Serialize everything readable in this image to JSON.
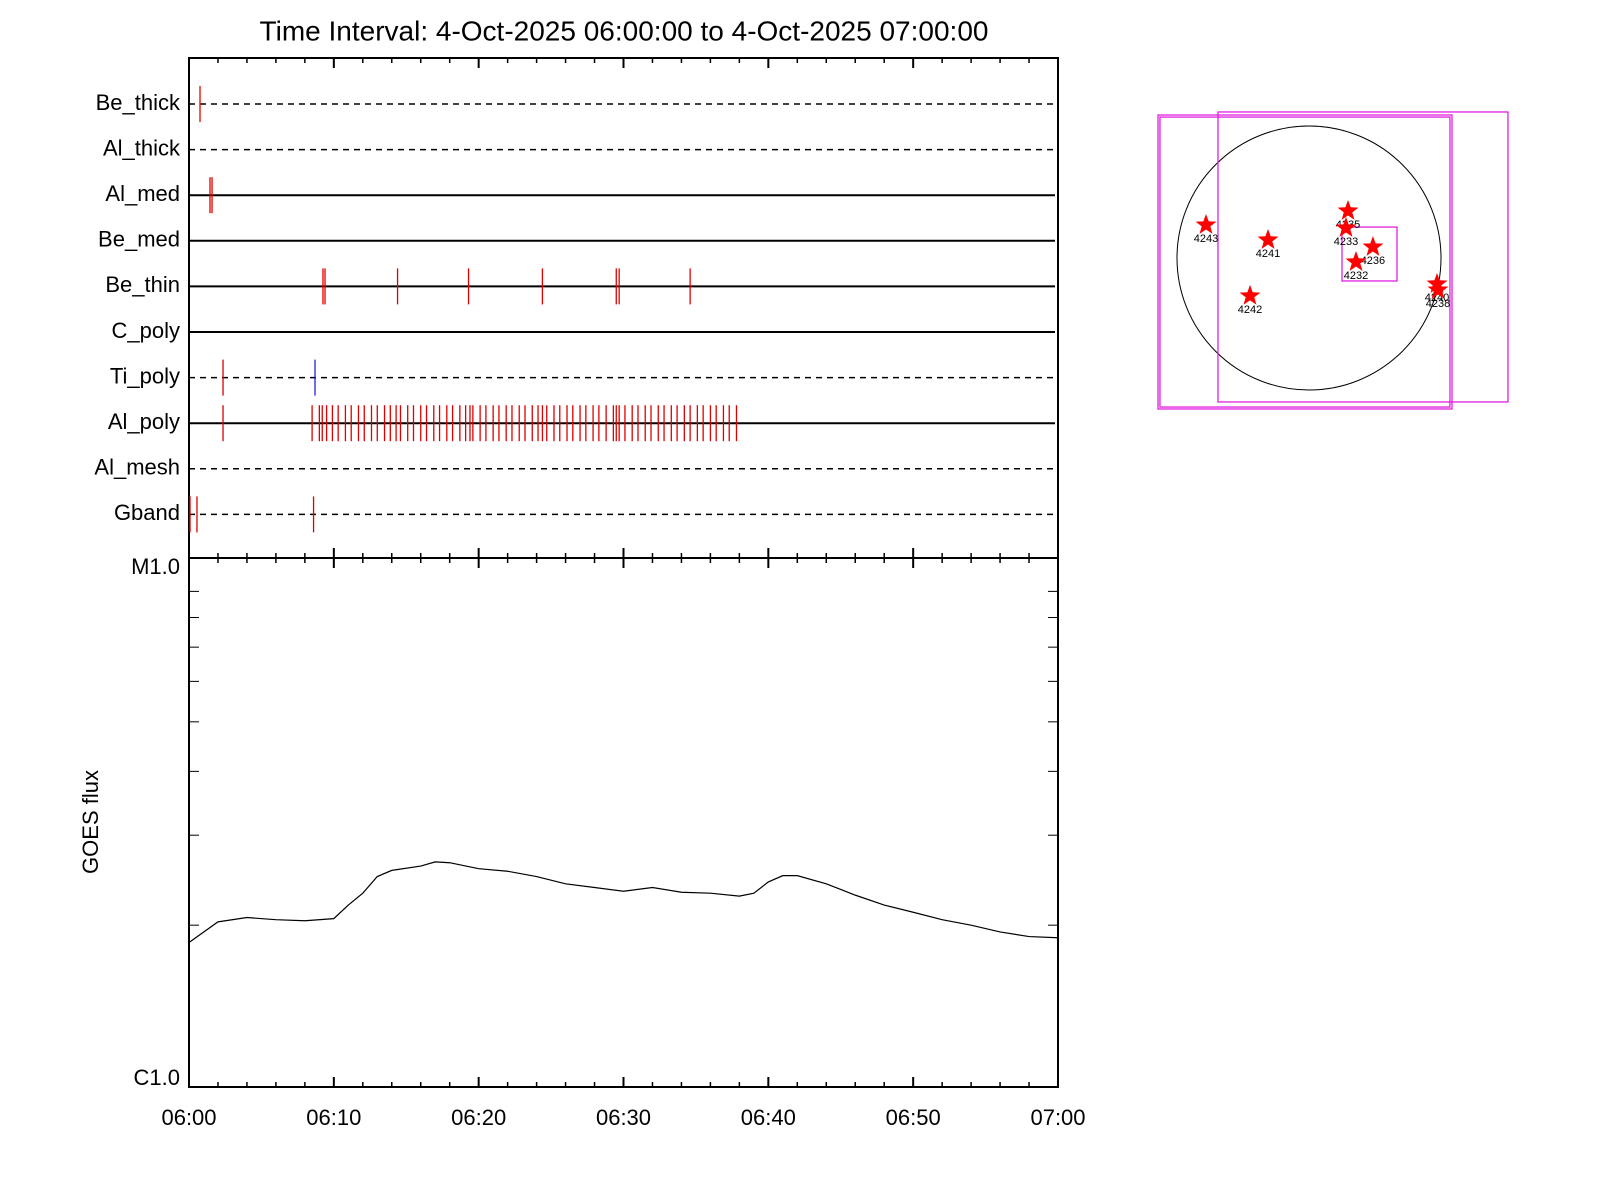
{
  "chart_data": [
    {
      "type": "timeline",
      "title": "Time Interval:  4-Oct-2025 06:00:00 to  4-Oct-2025 07:00:00",
      "xlim": [
        0,
        60
      ],
      "xticks": [
        {
          "value": 0,
          "label": "06:00"
        },
        {
          "value": 10,
          "label": "06:10"
        },
        {
          "value": 20,
          "label": "06:20"
        },
        {
          "value": 30,
          "label": "06:30"
        },
        {
          "value": 40,
          "label": "06:40"
        },
        {
          "value": 50,
          "label": "06:50"
        },
        {
          "value": 60,
          "label": "07:00"
        }
      ],
      "minor_xticks": [
        2,
        4,
        6,
        8,
        12,
        14,
        16,
        18,
        22,
        24,
        26,
        28,
        32,
        34,
        36,
        38,
        42,
        44,
        46,
        48,
        52,
        54,
        56,
        58
      ],
      "series": [
        {
          "name": "Be_thick",
          "style": "dashed",
          "color": "#e00000",
          "values": [
            0.76
          ]
        },
        {
          "name": "Al_thick",
          "style": "dashed",
          "color": "#e00000",
          "values": []
        },
        {
          "name": "Al_med",
          "style": "solid",
          "color": "#e00000",
          "values": [
            1.45,
            1.59
          ]
        },
        {
          "name": "Be_med",
          "style": "solid",
          "color": "#e00000",
          "values": []
        },
        {
          "name": "Be_thin",
          "style": "solid",
          "color": "#e00000",
          "values": [
            9.25,
            9.39,
            14.4,
            19.3,
            24.4,
            29.5,
            29.7,
            34.6
          ]
        },
        {
          "name": "C_poly",
          "style": "solid",
          "color": "#e00000",
          "values": []
        },
        {
          "name": "Ti_poly",
          "style": "dashed",
          "color": "#e00000",
          "colors": [
            "#e00000",
            "#2020e0"
          ],
          "values": [
            2.35,
            8.7
          ]
        },
        {
          "name": "Al_poly",
          "style": "solid",
          "color": "#e00000",
          "values": [
            2.35,
            8.5,
            9.0,
            9.2,
            9.5,
            9.9,
            10.3,
            10.8,
            11.2,
            11.7,
            12.1,
            12.6,
            13.0,
            13.5,
            13.9,
            14.3,
            14.6,
            15.1,
            15.5,
            16.0,
            16.4,
            16.9,
            17.3,
            17.8,
            18.2,
            18.7,
            19.1,
            19.4,
            19.6,
            20.1,
            20.5,
            21.0,
            21.4,
            21.9,
            22.3,
            22.8,
            23.2,
            23.7,
            24.1,
            24.4,
            24.7,
            25.2,
            25.6,
            26.1,
            26.5,
            27.0,
            27.4,
            27.9,
            28.3,
            28.8,
            29.3,
            29.5,
            29.7,
            30.1,
            30.6,
            31.0,
            31.5,
            31.9,
            32.4,
            32.8,
            33.3,
            33.7,
            34.2,
            34.6,
            35.1,
            35.5,
            36.0,
            36.4,
            36.9,
            37.3,
            37.8
          ]
        },
        {
          "name": "Al_mesh",
          "style": "dashed",
          "color": "#e00000",
          "values": []
        },
        {
          "name": "Gband",
          "style": "dashed",
          "color": "#e00000",
          "values": [
            0.07,
            0.55,
            8.6
          ]
        }
      ]
    },
    {
      "type": "line",
      "ylabel": "GOES flux",
      "log_y": true,
      "color": "#000000",
      "xlim": [
        0,
        60
      ],
      "xticks": [
        {
          "value": 0,
          "label": "06:00"
        },
        {
          "value": 10,
          "label": "06:10"
        },
        {
          "value": 20,
          "label": "06:20"
        },
        {
          "value": 30,
          "label": "06:30"
        },
        {
          "value": 40,
          "label": "06:40"
        },
        {
          "value": 50,
          "label": "06:50"
        },
        {
          "value": 60,
          "label": "07:00"
        }
      ],
      "minor_xticks": [
        2,
        4,
        6,
        8,
        12,
        14,
        16,
        18,
        22,
        24,
        26,
        28,
        32,
        34,
        36,
        38,
        42,
        44,
        46,
        48,
        52,
        54,
        56,
        58
      ],
      "ylim": [
        1e-06,
        1e-05
      ],
      "yticks": [
        {
          "value": 1e-06,
          "label": "C1.0"
        },
        {
          "value": 1e-05,
          "label": "M1.0"
        }
      ],
      "minor_yticks": [
        2e-06,
        3e-06,
        4e-06,
        5e-06,
        6e-06,
        7e-06,
        8e-06,
        9e-06
      ],
      "x": [
        0,
        2,
        4,
        6,
        8,
        10,
        11,
        12,
        13,
        14,
        16,
        17,
        18,
        20,
        22,
        24,
        26,
        28,
        30,
        32,
        34,
        36,
        38,
        39,
        40,
        41,
        42,
        44,
        46,
        48,
        50,
        52,
        54,
        56,
        58,
        60
      ],
      "values": [
        1.85e-06,
        2.03e-06,
        2.07e-06,
        2.05e-06,
        2.04e-06,
        2.06e-06,
        2.19e-06,
        2.31e-06,
        2.49e-06,
        2.56e-06,
        2.61e-06,
        2.66e-06,
        2.65e-06,
        2.58e-06,
        2.55e-06,
        2.49e-06,
        2.41e-06,
        2.37e-06,
        2.33e-06,
        2.37e-06,
        2.32e-06,
        2.31e-06,
        2.28e-06,
        2.31e-06,
        2.43e-06,
        2.5e-06,
        2.5e-06,
        2.41e-06,
        2.29e-06,
        2.19e-06,
        2.12e-06,
        2.05e-06,
        2e-06,
        1.94e-06,
        1.9e-06,
        1.89e-06
      ]
    },
    {
      "type": "map",
      "disk_radius": 960,
      "boxes": [
        [
          -1084,
          -1084,
          1025,
          1025
        ],
        [
          -1098,
          -1098,
          1040,
          1040
        ],
        [
          -662,
          -1047,
          1447,
          1062
        ],
        [
          240,
          -167,
          640,
          225
        ]
      ],
      "box_color": "#e020e0",
      "marker_color": "#ff0000",
      "regions": [
        {
          "label": "4243",
          "x": -749,
          "y": 240
        },
        {
          "label": "4241",
          "x": -298,
          "y": 131
        },
        {
          "label": "4235",
          "x": 284,
          "y": 342
        },
        {
          "label": "4233",
          "x": 269,
          "y": 218
        },
        {
          "label": "4236",
          "x": 465,
          "y": 80
        },
        {
          "label": "4232",
          "x": 342,
          "y": -29
        },
        {
          "label": "4242",
          "x": -429,
          "y": -276
        },
        {
          "label": "4240",
          "x": 931,
          "y": -189
        },
        {
          "label": "4238",
          "x": 938,
          "y": -233
        }
      ]
    }
  ]
}
